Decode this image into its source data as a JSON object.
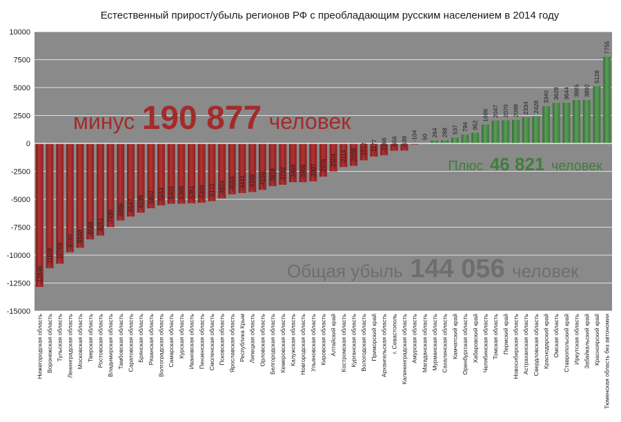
{
  "chart_data": {
    "type": "bar",
    "title": "Естественный прирост/убыль регионов РФ с преобладающим русским населением в 2014 году",
    "xlabel": "",
    "ylabel": "",
    "ylim": [
      -15000,
      10000
    ],
    "yticks": [
      10000,
      7500,
      5000,
      2500,
      0,
      -2500,
      -5000,
      -7500,
      -10000,
      -12500,
      -15000
    ],
    "grid": true,
    "categories": [
      "Нижегородская область",
      "Воронежская область",
      "Тульская область",
      "Ленинградская область",
      "Московская область",
      "Тверская область",
      "Ростовская область",
      "Владимирская область",
      "Тамбовская область",
      "Саратовская область",
      "Брянская область",
      "Рязанская область",
      "Волгоградская область",
      "Самарская область",
      "Курская область",
      "Ивановская область",
      "Пензенская область",
      "Смоленская область",
      "Псковская область",
      "Ярославская область",
      "Республика Крым",
      "Липецкая область",
      "Орловская область",
      "Белгородская область",
      "Кемеровская область",
      "Калужская область",
      "Новгородская область",
      "Ульяновская область",
      "Кировская область",
      "Алтайский край",
      "Костромская область",
      "Курганская область",
      "Вологодская область",
      "Приморский край",
      "Архангельская область",
      "г. Севастополь",
      "Калининградская область",
      "Амурская область",
      "Магаданская область",
      "Мурманская область",
      "Сахалинская область",
      "Камчатский край",
      "Оренбургская область",
      "Хабаровский край",
      "Челябинская область",
      "Томская область",
      "Пермский край",
      "Новосибирская область",
      "Астраханская область",
      "Свердловская область",
      "Краснодарский край",
      "Омская область",
      "Ставропольский край",
      "Иркутская область",
      "Забайкальский край",
      "Красноярский край",
      "Тюменская область без автономии"
    ],
    "values": [
      -12846,
      -11168,
      -10769,
      -9740,
      -9348,
      -8588,
      -8251,
      -7495,
      -6896,
      -6547,
      -6198,
      -5802,
      -5553,
      -5402,
      -5395,
      -5361,
      -5309,
      -5172,
      -4924,
      -4559,
      -4441,
      -4349,
      -4155,
      -3819,
      -3702,
      -3469,
      -3466,
      -3397,
      -2976,
      -2504,
      -2114,
      -2008,
      -1512,
      -1177,
      -1066,
      -656,
      -639,
      -104,
      50,
      264,
      288,
      537,
      794,
      952,
      1686,
      2047,
      2070,
      2099,
      2334,
      2428,
      3340,
      3628,
      3644,
      3885,
      3892,
      5128,
      7755
    ],
    "value_labels": [
      "-12846",
      "-11168",
      "-10769",
      "-9740",
      "-9348",
      "-8588",
      "-8251",
      "-7495",
      "-6896",
      "-6547",
      "-6198",
      "-5802",
      "-5553",
      "-5402",
      "-5395",
      "-5361",
      "-5309",
      "-5172",
      "-4924",
      "-4559",
      "-4441",
      "-4349",
      "-4155",
      "-3819",
      "-3702",
      "-3469",
      "-3466",
      "-3397",
      "-2976",
      "-2504",
      "-2114",
      "-2008",
      "-1512",
      "-1177",
      "-1066",
      "-656",
      "-639",
      "-104",
      "50",
      "264",
      "288",
      "537",
      "794",
      "952",
      "1686",
      "2047",
      "2070",
      "2099",
      "2334",
      "2428",
      "3340",
      "3628",
      "3644",
      "3885",
      "3892",
      "5128",
      "7755"
    ],
    "colors": {
      "negative": "#a32b2b",
      "positive": "#4b8b4a",
      "plot_bg": "#8a8a8a",
      "grid": "#ffffff",
      "total": "#6e6e6e"
    },
    "annotations": {
      "negative": {
        "prefix": "минус",
        "number": "190 877",
        "suffix": "человек"
      },
      "positive": {
        "prefix": "Плюс",
        "number": "46 821",
        "suffix": "человек"
      },
      "total": {
        "prefix": "Общая убыль",
        "number": "144 056",
        "suffix": "человек"
      }
    }
  }
}
